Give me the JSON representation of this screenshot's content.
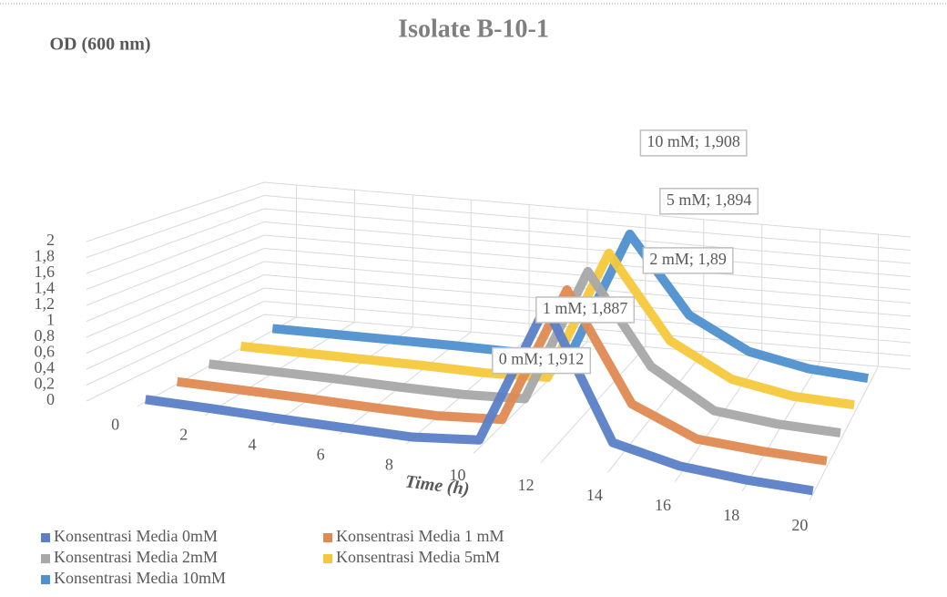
{
  "chart_data": {
    "type": "line3d",
    "title": "Isolate B-10-1",
    "y_label": "OD (600 nm)",
    "x_label": "Time (h)",
    "x": [
      0,
      2,
      4,
      6,
      8,
      10,
      12,
      14,
      16,
      18,
      20
    ],
    "xlim": [
      0,
      20
    ],
    "xticks": [
      0,
      2,
      4,
      6,
      8,
      10,
      12,
      14,
      16,
      18,
      20
    ],
    "ylim": [
      0,
      2
    ],
    "yticks": [
      0,
      {
        "value": 0.2,
        "label": "0,2"
      },
      {
        "value": 0.4,
        "label": "0,4"
      },
      {
        "value": 0.6,
        "label": "0,6"
      },
      {
        "value": 0.8,
        "label": "0,8"
      },
      1,
      {
        "value": 1.2,
        "label": "1,2"
      },
      {
        "value": 1.4,
        "label": "1,4"
      },
      {
        "value": 1.6,
        "label": "1,6"
      },
      {
        "value": 1.8,
        "label": "1,8"
      },
      2
    ],
    "grid": true,
    "series": [
      {
        "name": "Konsentrasi Media 0mM",
        "color": "#5b80c8",
        "values": [
          0.03,
          0.03,
          0.02,
          0.02,
          0.02,
          0.1,
          1.912,
          0.3,
          0.12,
          0.06,
          0.04
        ],
        "value_labels": [
          null,
          null,
          null,
          null,
          null,
          null,
          "0 mM; 1,912",
          null,
          null,
          null,
          null
        ]
      },
      {
        "name": "Konsentrasi Media 1 mM",
        "color": "#e08a52",
        "values": [
          0.03,
          0.03,
          0.03,
          0.02,
          0.02,
          0.08,
          1.887,
          0.5,
          0.15,
          0.1,
          0.08
        ],
        "value_labels": [
          null,
          null,
          null,
          null,
          null,
          null,
          "1 mM; 1,887",
          null,
          null,
          null,
          null
        ]
      },
      {
        "name": "Konsentrasi Media 2mM",
        "color": "#a8a8a8",
        "values": [
          0.03,
          0.03,
          0.03,
          0.02,
          0.02,
          0.06,
          1.89,
          0.7,
          0.2,
          0.12,
          0.1
        ],
        "value_labels": [
          null,
          null,
          null,
          null,
          null,
          null,
          "2 mM; 1,89",
          null,
          null,
          null,
          null
        ]
      },
      {
        "name": "Konsentrasi Media 5mM",
        "color": "#f5c83c",
        "values": [
          0.03,
          0.03,
          0.03,
          0.03,
          0.02,
          0.05,
          1.894,
          0.75,
          0.3,
          0.15,
          0.12
        ],
        "value_labels": [
          null,
          null,
          null,
          null,
          null,
          null,
          "5 mM; 1,894",
          null,
          null,
          null,
          null
        ]
      },
      {
        "name": "Konsentrasi Media 10mM",
        "color": "#4f90cf",
        "values": [
          0.03,
          0.03,
          0.03,
          0.03,
          0.02,
          0.05,
          1.908,
          0.8,
          0.35,
          0.18,
          0.12
        ],
        "value_labels": [
          null,
          null,
          null,
          null,
          null,
          null,
          "10 mM; 1,908",
          null,
          null,
          null,
          null
        ]
      }
    ]
  }
}
